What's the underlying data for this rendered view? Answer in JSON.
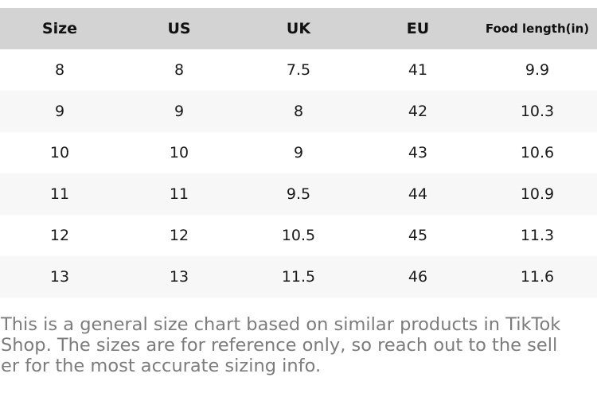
{
  "table": {
    "columns": [
      "Size",
      "US",
      "UK",
      "EU",
      "Food length(in)"
    ],
    "rows": [
      [
        "8",
        "8",
        "7.5",
        "41",
        "9.9"
      ],
      [
        "9",
        "9",
        "8",
        "42",
        "10.3"
      ],
      [
        "10",
        "10",
        "9",
        "43",
        "10.6"
      ],
      [
        "11",
        "11",
        "9.5",
        "44",
        "10.9"
      ],
      [
        "12",
        "12",
        "10.5",
        "45",
        "11.3"
      ],
      [
        "13",
        "13",
        "11.5",
        "46",
        "11.6"
      ]
    ]
  },
  "footer": {
    "text": "This is a general size chart based on similar products in TikTok Shop. The sizes are for reference only, so reach out to the seller for the most accurate sizing info.",
    "lines": [
      "This is a general size chart based on similar products in TikTok",
      "Shop. The sizes are for reference only, so reach out to the sell",
      "er for the most accurate sizing info."
    ]
  },
  "colors": {
    "header_bg": "#d3d3d3",
    "row_alt_bg": "#f7f7f8",
    "row_bg": "#ffffff",
    "table_text": "#1a1a1a",
    "note_text": "#7c7c7c"
  }
}
